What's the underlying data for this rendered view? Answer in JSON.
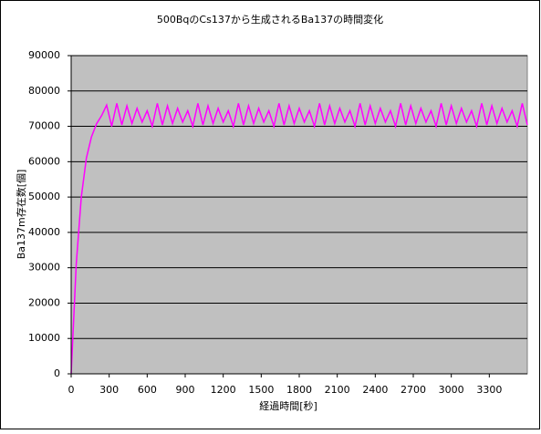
{
  "chart_data": {
    "type": "line",
    "title": "500BqのCs137から生成されるBa137の時間変化",
    "x_label": "経過時間[秒]",
    "y_label": "Ba137m存在数[個]",
    "x": [
      0,
      40,
      80,
      120,
      160,
      200,
      240,
      280,
      320,
      360,
      400,
      440,
      480,
      520,
      560,
      600,
      640,
      680,
      720,
      760,
      800,
      840,
      880,
      920,
      960,
      1000,
      1040,
      1080,
      1120,
      1160,
      1200,
      1240,
      1280,
      1320,
      1360,
      1400,
      1440,
      1480,
      1520,
      1560,
      1600,
      1640,
      1680,
      1720,
      1760,
      1800,
      1840,
      1880,
      1920,
      1960,
      2000,
      2040,
      2080,
      2120,
      2160,
      2200,
      2240,
      2280,
      2320,
      2360,
      2400,
      2440,
      2480,
      2520,
      2560,
      2600,
      2640,
      2680,
      2720,
      2760,
      2800,
      2840,
      2880,
      2920,
      2960,
      3000,
      3040,
      3080,
      3120,
      3160,
      3200,
      3240,
      3280,
      3320,
      3360,
      3400,
      3440,
      3480,
      3520,
      3560,
      3600
    ],
    "values": [
      0,
      31000,
      50000,
      61000,
      67000,
      70700,
      73000,
      76000,
      70000,
      76500,
      70400,
      75800,
      70800,
      75100,
      71200,
      74400,
      70000,
      76500,
      70400,
      75800,
      70800,
      75100,
      71200,
      74400,
      70000,
      76500,
      70400,
      75800,
      70800,
      75100,
      71200,
      74400,
      70000,
      76500,
      70400,
      75800,
      70800,
      75100,
      71200,
      74400,
      70000,
      76500,
      70400,
      75800,
      70800,
      75100,
      71200,
      74400,
      70000,
      76500,
      70400,
      75800,
      70800,
      75100,
      71200,
      74400,
      70000,
      76500,
      70400,
      75800,
      70800,
      75100,
      71200,
      74400,
      70000,
      76500,
      70400,
      75800,
      70800,
      75100,
      71200,
      74400,
      70000,
      76500,
      70400,
      75800,
      70800,
      75100,
      71200,
      74400,
      70000,
      76500,
      70400,
      75800,
      70800,
      75100,
      71200,
      74400,
      70000,
      76500,
      70400
    ],
    "color": "#ff00ff",
    "xlim": [
      0,
      3600
    ],
    "xticks": [
      0,
      300,
      600,
      900,
      1200,
      1500,
      1800,
      2100,
      2400,
      2700,
      3000,
      3300
    ],
    "ylim": [
      0,
      90000
    ],
    "yticks": [
      0,
      10000,
      20000,
      30000,
      40000,
      50000,
      60000,
      70000,
      80000,
      90000
    ],
    "grid": true
  }
}
